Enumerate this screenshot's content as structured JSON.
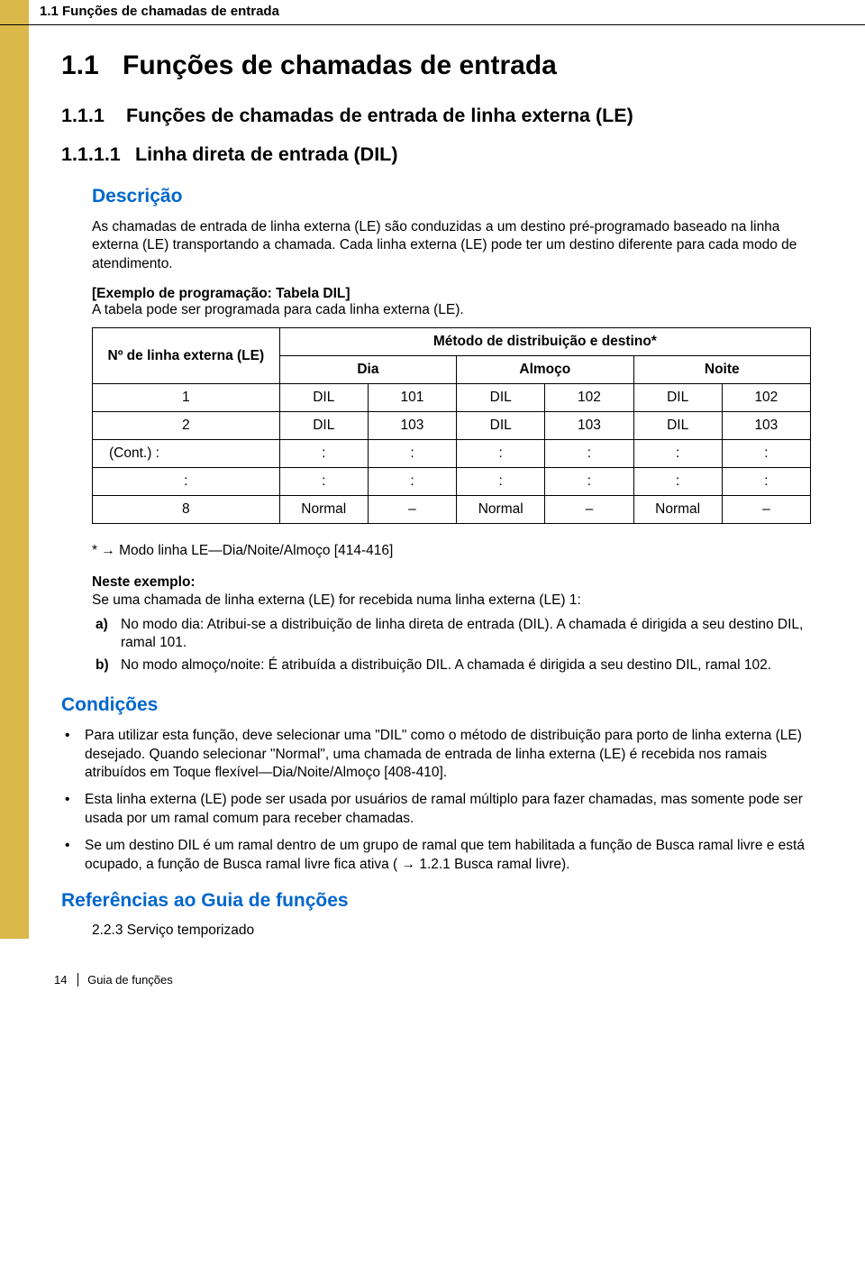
{
  "colors": {
    "band": "#dab84a",
    "link": "#0066cc",
    "text": "#000000",
    "bg": "#ffffff",
    "border": "#000000"
  },
  "fonts": {
    "body_family": "Arial",
    "body_size_pt": 11.5,
    "h1_size_pt": 22,
    "h2_size_pt": 16,
    "section_label_size_pt": 16
  },
  "header": {
    "running_title": "1.1 Funções de chamadas de entrada"
  },
  "headings": {
    "h1_num": "1.1",
    "h1_text": "Funções de chamadas de entrada",
    "h2_num": "1.1.1",
    "h2_text": "Funções de chamadas de entrada de linha externa (LE)",
    "h3_num": "1.1.1.1",
    "h3_text": "Linha direta de entrada (DIL)"
  },
  "description": {
    "label": "Descrição",
    "p1": "As chamadas de entrada de linha externa (LE) são conduzidas a um destino pré-programado baseado na linha externa (LE) transportando a chamada. Cada linha externa (LE) pode ter um destino diferente para cada modo de atendimento.",
    "example_heading": "[Exemplo de programação: Tabela DIL]",
    "example_sub": "A tabela pode ser programada para cada linha externa (LE)."
  },
  "table": {
    "col_le": "Nº de linha externa (LE)",
    "col_method_header": "Método de distribuição e destino*",
    "col_dia": "Dia",
    "col_almoco": "Almoço",
    "col_noite": "Noite",
    "rows": [
      {
        "le": "1",
        "dia_m": "DIL",
        "dia_d": "101",
        "alm_m": "DIL",
        "alm_d": "102",
        "noi_m": "DIL",
        "noi_d": "102"
      },
      {
        "le": "2",
        "dia_m": "DIL",
        "dia_d": "103",
        "alm_m": "DIL",
        "alm_d": "103",
        "noi_m": "DIL",
        "noi_d": "103"
      },
      {
        "le": "(Cont.) :",
        "dia_m": ":",
        "dia_d": ":",
        "alm_m": ":",
        "alm_d": ":",
        "noi_m": ":",
        "noi_d": ":",
        "left": true
      },
      {
        "le": ":",
        "dia_m": ":",
        "dia_d": ":",
        "alm_m": ":",
        "alm_d": ":",
        "noi_m": ":",
        "noi_d": ":"
      },
      {
        "le": "8",
        "dia_m": "Normal",
        "dia_d": "–",
        "alm_m": "Normal",
        "alm_d": "–",
        "noi_m": "Normal",
        "noi_d": "–"
      }
    ],
    "footnote_prefix": "* ",
    "footnote_text": " Modo linha LE—Dia/Noite/Almoço [414-416]"
  },
  "neste_exemplo": {
    "label": "Neste exemplo:",
    "intro": "Se uma chamada de linha externa (LE) for recebida numa linha externa (LE) 1:",
    "items": [
      {
        "marker": "a)",
        "text": "No modo dia: Atribui-se a distribuição de linha direta de entrada (DIL). A chamada é dirigida a seu destino DIL, ramal 101."
      },
      {
        "marker": "b)",
        "text": "No modo almoço/noite: É atribuída a distribuição DIL. A chamada é dirigida a seu destino DIL, ramal 102."
      }
    ]
  },
  "condicoes": {
    "label": "Condições",
    "items": [
      "Para utilizar esta função, deve selecionar uma \"DIL\" como o método de distribuição para porto de linha externa (LE) desejado. Quando selecionar \"Normal\", uma chamada de entrada de linha externa (LE) é recebida nos ramais atribuídos em Toque flexível—Dia/Noite/Almoço [408-410].",
      "Esta linha externa (LE) pode ser usada por usuários de ramal múltiplo para fazer chamadas, mas somente pode ser usada por um ramal comum para receber chamadas.",
      "Se um destino DIL é um ramal dentro de um grupo de ramal que tem habilitada a função de Busca ramal livre e está ocupado, a função de Busca ramal livre fica ativa ( → 1.2.1 Busca ramal livre)."
    ]
  },
  "referencias": {
    "label": "Referências ao Guia de funções",
    "item": "2.2.3 Serviço temporizado"
  },
  "footer": {
    "page_num": "14",
    "doc_title": "Guia de funções"
  }
}
